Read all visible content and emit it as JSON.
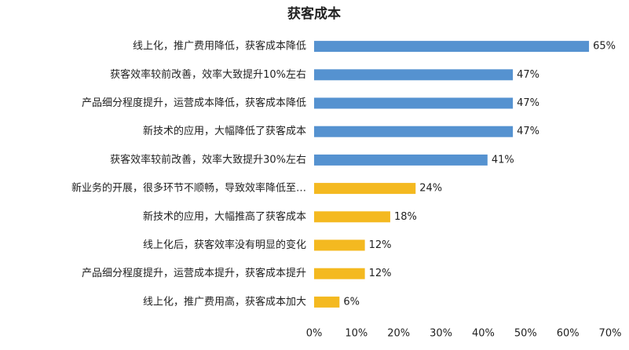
{
  "chart_data": {
    "type": "bar",
    "orientation": "horizontal",
    "title": "获客成本",
    "categories": [
      "线上化，推广费用降低，获客成本降低",
      "获客效率较前改善，效率大致提升10%左右",
      "产品细分程度提升，运营成本降低，获客成本降低",
      "新技术的应用，大幅降低了获客成本",
      "获客效率较前改善，效率大致提升30%左右",
      "新业务的开展，很多环节不顺畅，导致效率降低至…",
      "新技术的应用，大幅推高了获客成本",
      "线上化后，获客效率没有明显的变化",
      "产品细分程度提升，运营成本提升，获客成本提升",
      "线上化，推广费用高，获客成本加大"
    ],
    "values": [
      65,
      47,
      47,
      47,
      41,
      24,
      18,
      12,
      12,
      6
    ],
    "value_labels": [
      "65%",
      "47%",
      "47%",
      "47%",
      "41%",
      "24%",
      "18%",
      "12%",
      "12%",
      "6%"
    ],
    "colors": [
      "#5592d0",
      "#5592d0",
      "#5592d0",
      "#5592d0",
      "#5592d0",
      "#f4b920",
      "#f4b920",
      "#f4b920",
      "#f4b920",
      "#f4b920"
    ],
    "xlim": [
      0,
      70
    ],
    "xticks": [
      {
        "value": 0,
        "label": "0%"
      },
      {
        "value": 10,
        "label": "10%"
      },
      {
        "value": 20,
        "label": "20%"
      },
      {
        "value": 30,
        "label": "30%"
      },
      {
        "value": 40,
        "label": "40%"
      },
      {
        "value": 50,
        "label": "50%"
      },
      {
        "value": 60,
        "label": "60%"
      },
      {
        "value": 70,
        "label": "70%"
      }
    ],
    "grid": false
  }
}
